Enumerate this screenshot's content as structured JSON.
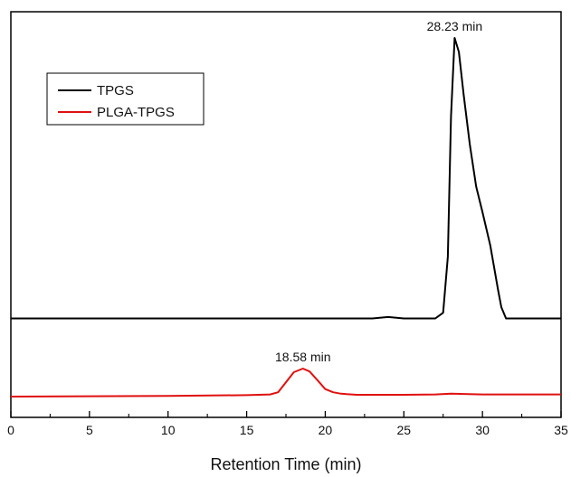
{
  "chart_data": {
    "type": "line",
    "title": "",
    "xlabel": "Retention Time (min)",
    "ylabel": "",
    "xlim": [
      0,
      35
    ],
    "x_ticks": [
      "0",
      "5",
      "10",
      "15",
      "20",
      "25",
      "30",
      "35"
    ],
    "y_ticks_shown": false,
    "grid": false,
    "legend_position": "top-left",
    "legend": [
      {
        "name": "TPGS",
        "color": "#000000"
      },
      {
        "name": "PLGA-TPGS",
        "color": "#e01010"
      }
    ],
    "series": [
      {
        "name": "TPGS",
        "color": "#000000",
        "x": [
          0,
          5,
          10,
          15,
          20,
          23,
          24,
          25,
          27,
          27.5,
          27.8,
          28.0,
          28.23,
          28.5,
          28.8,
          29.2,
          29.6,
          30.0,
          30.5,
          31.0,
          31.2,
          31.5,
          33,
          35
        ],
        "y": [
          0.0,
          0.0,
          0.0,
          0.0,
          0.0,
          0.0,
          0.005,
          0.0,
          0.0,
          0.02,
          0.22,
          0.72,
          1.0,
          0.95,
          0.8,
          0.62,
          0.47,
          0.38,
          0.26,
          0.1,
          0.04,
          0.0,
          0.0,
          0.0
        ],
        "baseline_offset": 0.218
      },
      {
        "name": "PLGA-TPGS",
        "color": "#e01010",
        "x": [
          0,
          5,
          10,
          15,
          16.5,
          17,
          17.5,
          18.0,
          18.58,
          19.0,
          19.5,
          20.0,
          20.5,
          21,
          22,
          25,
          27,
          28,
          30,
          35
        ],
        "y": [
          0.0,
          0.001,
          0.002,
          0.004,
          0.006,
          0.012,
          0.04,
          0.068,
          0.078,
          0.07,
          0.046,
          0.021,
          0.012,
          0.008,
          0.005,
          0.005,
          0.006,
          0.008,
          0.006,
          0.006
        ],
        "baseline_offset": 0.0
      }
    ],
    "annotations": [
      {
        "text": "28.23 min",
        "x": 28.23,
        "series": "TPGS"
      },
      {
        "text": "18.58 min",
        "x": 18.58,
        "series": "PLGA-TPGS"
      }
    ]
  }
}
